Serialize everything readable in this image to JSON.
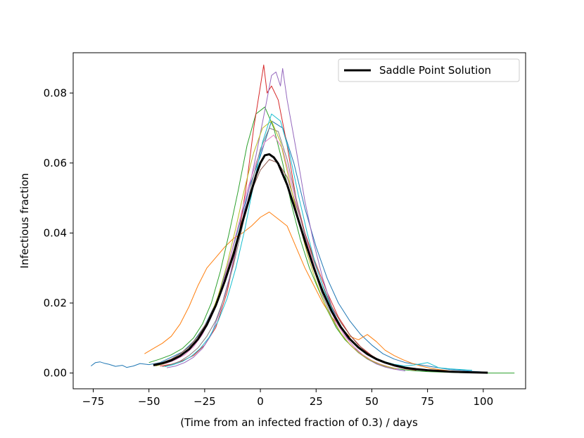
{
  "chart_data": {
    "type": "line",
    "title": "",
    "xlabel": "(Time from an infected fraction of 0.3) / days",
    "ylabel": "Infectious fraction",
    "xlim": [
      -84,
      119
    ],
    "ylim": [
      -0.0045,
      0.0915
    ],
    "xticks": [
      -75,
      -50,
      -25,
      0,
      25,
      50,
      75,
      100
    ],
    "xtick_labels": [
      "−75",
      "−50",
      "−25",
      "0",
      "25",
      "50",
      "75",
      "100"
    ],
    "yticks": [
      0.0,
      0.02,
      0.04,
      0.06,
      0.08
    ],
    "ytick_labels": [
      "0.00",
      "0.02",
      "0.04",
      "0.06",
      "0.08"
    ],
    "grid": false,
    "legend_position": "top-right",
    "legend": [
      "Saddle Point Solution"
    ],
    "series": [
      {
        "name": "Saddle Point Solution",
        "color": "#000000",
        "x": [
          -48,
          -44,
          -40,
          -36,
          -32,
          -28,
          -24,
          -20,
          -16,
          -12,
          -8,
          -4,
          -2,
          0,
          2,
          4,
          6,
          8,
          12,
          16,
          20,
          24,
          28,
          32,
          36,
          40,
          44,
          48,
          52,
          56,
          60,
          65,
          70,
          75,
          80,
          85,
          90,
          95,
          102
        ],
        "y": [
          0.0022,
          0.0028,
          0.0036,
          0.0049,
          0.0068,
          0.0097,
          0.0138,
          0.0193,
          0.0262,
          0.034,
          0.0432,
          0.052,
          0.0564,
          0.06,
          0.0622,
          0.0625,
          0.0616,
          0.0598,
          0.0538,
          0.0459,
          0.0377,
          0.03,
          0.0232,
          0.0176,
          0.0132,
          0.0098,
          0.0073,
          0.0054,
          0.004,
          0.003,
          0.0022,
          0.0015,
          0.0011,
          0.0008,
          0.0006,
          0.0004,
          0.0003,
          0.0002,
          0.0001
        ]
      },
      {
        "color": "#1f77b4",
        "x": [
          -76,
          -74,
          -72,
          -70,
          -68,
          -65,
          -62,
          -60,
          -57,
          -54,
          -50,
          -45,
          -40,
          -35,
          -30,
          -25,
          -20,
          -15,
          -10,
          -5,
          0,
          5,
          10,
          15,
          20,
          25,
          30,
          35,
          40,
          45,
          50,
          55,
          60,
          65,
          70,
          75,
          80,
          85,
          90,
          95,
          100
        ],
        "y": [
          0.002,
          0.003,
          0.0032,
          0.0028,
          0.0025,
          0.0019,
          0.0022,
          0.0016,
          0.002,
          0.0027,
          0.0024,
          0.003,
          0.0045,
          0.006,
          0.009,
          0.0135,
          0.02,
          0.03,
          0.041,
          0.053,
          0.062,
          0.072,
          0.07,
          0.06,
          0.047,
          0.036,
          0.027,
          0.02,
          0.015,
          0.011,
          0.008,
          0.0055,
          0.004,
          0.003,
          0.0025,
          0.002,
          0.0015,
          0.001,
          0.0008,
          0.0005,
          0.0003
        ]
      },
      {
        "color": "#ff7f0e",
        "x": [
          -52,
          -48,
          -44,
          -40,
          -36,
          -32,
          -28,
          -24,
          -20,
          -16,
          -12,
          -8,
          -4,
          0,
          4,
          8,
          12,
          16,
          20,
          24,
          28,
          32,
          36,
          40,
          44,
          48,
          52,
          56,
          60,
          64,
          68,
          72,
          76,
          80,
          85,
          90
        ],
        "y": [
          0.0055,
          0.007,
          0.0085,
          0.0105,
          0.014,
          0.019,
          0.025,
          0.03,
          0.033,
          0.036,
          0.0385,
          0.04,
          0.042,
          0.0445,
          0.046,
          0.044,
          0.042,
          0.036,
          0.03,
          0.025,
          0.02,
          0.016,
          0.013,
          0.0105,
          0.0095,
          0.011,
          0.009,
          0.0065,
          0.005,
          0.0038,
          0.0028,
          0.002,
          0.0014,
          0.001,
          0.0006,
          0.0004
        ]
      },
      {
        "color": "#2ca02c",
        "x": [
          -50,
          -45,
          -40,
          -35,
          -30,
          -26,
          -22,
          -18,
          -14,
          -10,
          -6,
          -2,
          2,
          6,
          10,
          14,
          18,
          22,
          26,
          30,
          34,
          38,
          42,
          46,
          50,
          55,
          60,
          65,
          70,
          75,
          80,
          85,
          90,
          95,
          100,
          105,
          110,
          114
        ],
        "y": [
          0.003,
          0.004,
          0.0052,
          0.007,
          0.01,
          0.014,
          0.02,
          0.029,
          0.04,
          0.052,
          0.065,
          0.074,
          0.076,
          0.07,
          0.06,
          0.048,
          0.038,
          0.03,
          0.024,
          0.018,
          0.013,
          0.0095,
          0.007,
          0.005,
          0.0035,
          0.0022,
          0.0014,
          0.0009,
          0.0006,
          0.0004,
          0.0003,
          0.0002,
          0.0001,
          0.0001,
          0.0,
          0.0,
          0.0,
          0.0
        ]
      },
      {
        "color": "#d62728",
        "x": [
          -45,
          -40,
          -35,
          -30,
          -25,
          -20,
          -15,
          -10,
          -6,
          -3,
          0,
          1.5,
          3,
          5,
          8,
          12,
          16,
          20,
          25,
          30,
          35,
          40,
          45,
          50,
          55,
          60,
          65,
          70
        ],
        "y": [
          0.002,
          0.0025,
          0.0035,
          0.005,
          0.008,
          0.013,
          0.023,
          0.038,
          0.055,
          0.07,
          0.082,
          0.088,
          0.08,
          0.082,
          0.078,
          0.065,
          0.05,
          0.04,
          0.031,
          0.023,
          0.016,
          0.011,
          0.0075,
          0.005,
          0.0032,
          0.002,
          0.0012,
          0.0008
        ]
      },
      {
        "color": "#9467bd",
        "x": [
          -42,
          -38,
          -34,
          -30,
          -26,
          -22,
          -18,
          -14,
          -10,
          -6,
          -2,
          2,
          5,
          7,
          9,
          10,
          12,
          16,
          20,
          24,
          28,
          32,
          36,
          40,
          44,
          48,
          52,
          56,
          60,
          65
        ],
        "y": [
          0.0015,
          0.002,
          0.003,
          0.0045,
          0.007,
          0.011,
          0.018,
          0.027,
          0.038,
          0.05,
          0.062,
          0.075,
          0.085,
          0.086,
          0.082,
          0.087,
          0.078,
          0.064,
          0.049,
          0.037,
          0.027,
          0.019,
          0.013,
          0.009,
          0.006,
          0.004,
          0.0026,
          0.0017,
          0.0011,
          0.0006
        ]
      },
      {
        "color": "#8c564b",
        "x": [
          -48,
          -44,
          -40,
          -36,
          -32,
          -28,
          -24,
          -20,
          -16,
          -12,
          -8,
          -4,
          0,
          4,
          8,
          12,
          16,
          20,
          24,
          28,
          32,
          36,
          40,
          44,
          48,
          52,
          56,
          60,
          64,
          68
        ],
        "y": [
          0.0025,
          0.003,
          0.004,
          0.0055,
          0.0075,
          0.0105,
          0.0145,
          0.02,
          0.027,
          0.035,
          0.044,
          0.052,
          0.058,
          0.061,
          0.06,
          0.056,
          0.048,
          0.04,
          0.032,
          0.025,
          0.019,
          0.0145,
          0.011,
          0.008,
          0.0058,
          0.0042,
          0.003,
          0.0021,
          0.0015,
          0.001
        ]
      },
      {
        "color": "#e377c2",
        "x": [
          -46,
          -42,
          -38,
          -34,
          -30,
          -26,
          -22,
          -18,
          -14,
          -10,
          -6,
          -2,
          2,
          6,
          10,
          14,
          18,
          22,
          26,
          30,
          34,
          38,
          42,
          46,
          50,
          54,
          58,
          62
        ],
        "y": [
          0.0022,
          0.0028,
          0.0038,
          0.0052,
          0.0075,
          0.011,
          0.016,
          0.023,
          0.032,
          0.042,
          0.052,
          0.06,
          0.066,
          0.068,
          0.064,
          0.054,
          0.044,
          0.035,
          0.027,
          0.02,
          0.0145,
          0.0105,
          0.0075,
          0.0052,
          0.0036,
          0.0025,
          0.0017,
          0.0011
        ]
      },
      {
        "color": "#7f7f7f",
        "x": [
          -44,
          -40,
          -36,
          -32,
          -28,
          -24,
          -20,
          -16,
          -12,
          -8,
          -4,
          0,
          4,
          8,
          12,
          16,
          20,
          24,
          28,
          32,
          36,
          40,
          44,
          48,
          52,
          56,
          60
        ],
        "y": [
          0.0018,
          0.0024,
          0.0034,
          0.005,
          0.0072,
          0.0105,
          0.015,
          0.022,
          0.031,
          0.042,
          0.054,
          0.064,
          0.07,
          0.069,
          0.061,
          0.05,
          0.039,
          0.0295,
          0.022,
          0.016,
          0.0115,
          0.0082,
          0.0058,
          0.004,
          0.0028,
          0.0019,
          0.0013
        ]
      },
      {
        "color": "#bcbd22",
        "x": [
          -47,
          -43,
          -39,
          -35,
          -31,
          -27,
          -23,
          -19,
          -15,
          -11,
          -7,
          -3,
          1,
          5,
          9,
          13,
          17,
          21,
          25,
          29,
          33,
          37,
          41,
          45,
          49,
          53,
          57,
          61
        ],
        "y": [
          0.002,
          0.0027,
          0.0037,
          0.0052,
          0.0074,
          0.0106,
          0.0152,
          0.022,
          0.031,
          0.0415,
          0.053,
          0.063,
          0.07,
          0.072,
          0.066,
          0.055,
          0.044,
          0.034,
          0.026,
          0.0195,
          0.0145,
          0.0105,
          0.0076,
          0.0054,
          0.0038,
          0.0026,
          0.0018,
          0.0012
        ]
      },
      {
        "color": "#17becf",
        "x": [
          -43,
          -39,
          -35,
          -31,
          -27,
          -23,
          -19,
          -15,
          -11,
          -7,
          -3,
          1,
          5,
          9,
          13,
          17,
          21,
          25,
          29,
          33,
          37,
          41,
          45,
          50,
          55,
          60,
          65,
          70,
          75,
          80,
          85,
          90,
          95
        ],
        "y": [
          0.0018,
          0.0024,
          0.0033,
          0.0048,
          0.007,
          0.0102,
          0.0148,
          0.0212,
          0.03,
          0.041,
          0.054,
          0.066,
          0.074,
          0.072,
          0.063,
          0.051,
          0.04,
          0.0305,
          0.023,
          0.017,
          0.0125,
          0.0092,
          0.0068,
          0.0048,
          0.0034,
          0.0025,
          0.002,
          0.0024,
          0.003,
          0.0015,
          0.0012,
          0.001,
          0.0008
        ]
      }
    ]
  }
}
